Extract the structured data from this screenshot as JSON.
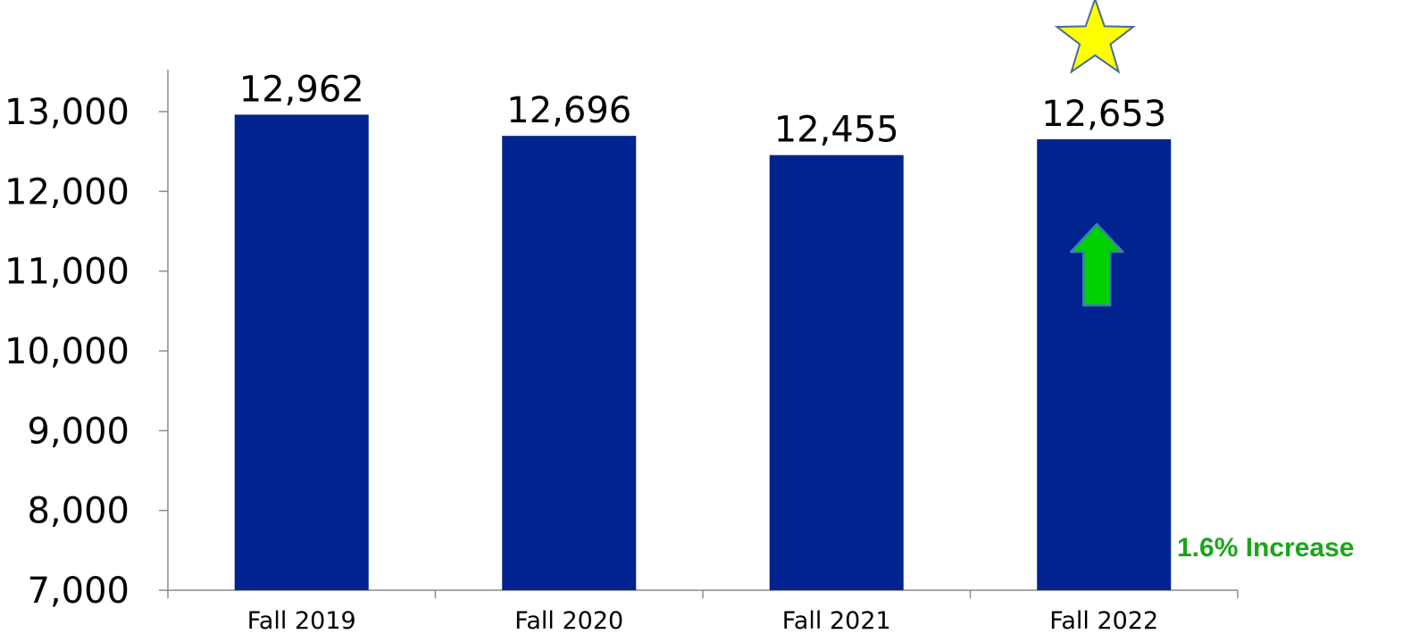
{
  "chart_data": {
    "type": "bar",
    "title": "",
    "xlabel": "",
    "ylabel": "",
    "categories": [
      "Fall 2019",
      "Fall 2020",
      "Fall 2021",
      "Fall 2022"
    ],
    "values": [
      12962,
      12696,
      12455,
      12653
    ],
    "data_labels": [
      "12,962",
      "12,696",
      "12,455",
      "12,653"
    ],
    "ylim": [
      7000,
      13000
    ],
    "y_ticks": [
      7000,
      8000,
      9000,
      10000,
      11000,
      12000,
      13000
    ],
    "y_tick_labels": [
      "7,000",
      "8,000",
      "9,000",
      "10,000",
      "11,000",
      "12,000",
      "13,000"
    ],
    "grid": false,
    "legend": "none",
    "bar_color": "#00238F",
    "annotation": {
      "text": "1.6% Increase",
      "color": "#1AA51A",
      "target_category": "Fall 2022"
    },
    "decorations": {
      "star": {
        "category": "Fall 2022",
        "fill": "#FFFF00",
        "stroke": "#4A6A9A",
        "icon": "star-icon"
      },
      "arrow": {
        "category": "Fall 2022",
        "direction": "up",
        "fill": "#00D000",
        "stroke": "#3C7DB5",
        "icon": "arrow-up-icon"
      }
    }
  }
}
